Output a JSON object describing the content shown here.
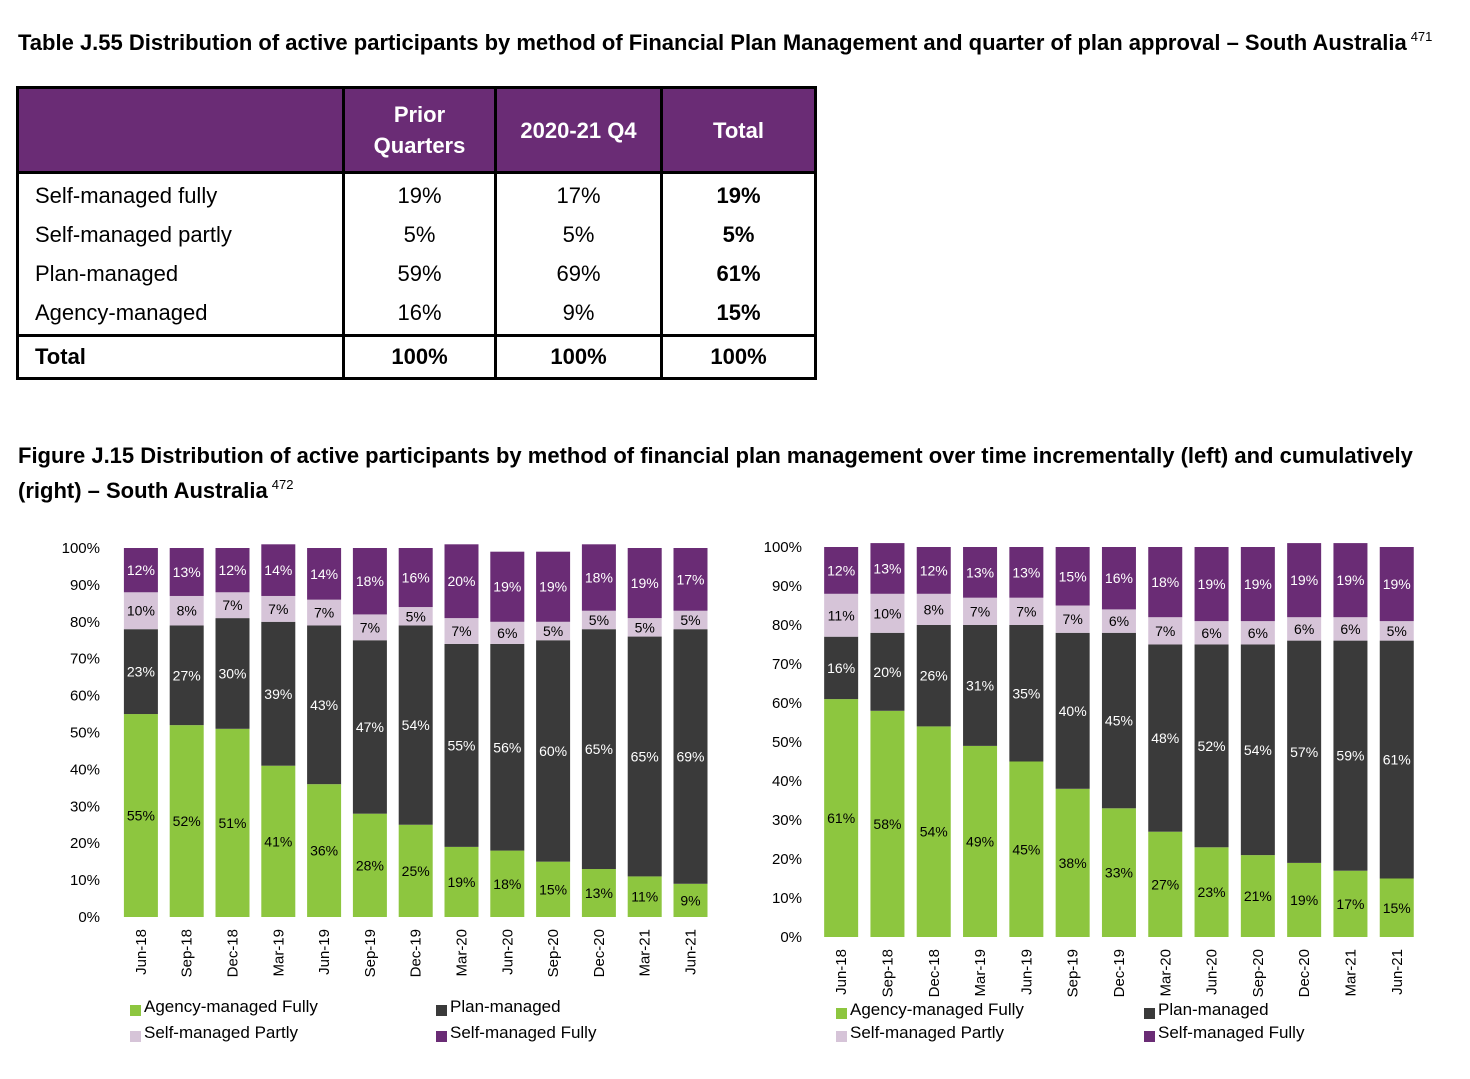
{
  "table": {
    "caption": "Table J.55 Distribution of active participants by method of Financial Plan Management and quarter of plan approval – South Australia",
    "footnote": "471",
    "headers": [
      "",
      "Prior Quarters",
      "2020-21 Q4",
      "Total"
    ],
    "rows": [
      {
        "label": "Self-managed fully",
        "prior": "19%",
        "q4": "17%",
        "total": "19%"
      },
      {
        "label": "Self-managed partly",
        "prior": "5%",
        "q4": "5%",
        "total": "5%"
      },
      {
        "label": "Plan-managed",
        "prior": "59%",
        "q4": "69%",
        "total": "61%"
      },
      {
        "label": "Agency-managed",
        "prior": "16%",
        "q4": "9%",
        "total": "15%"
      }
    ],
    "total_row": {
      "label": "Total",
      "prior": "100%",
      "q4": "100%",
      "total": "100%"
    }
  },
  "figure": {
    "caption": "Figure J.15 Distribution of active participants by method of financial plan management over time incrementally (left) and cumulatively (right) – South Australia",
    "footnote": "472"
  },
  "colors": {
    "header_purple": "#6a2c75",
    "agency": "#8dc63f",
    "plan": "#3a3a3a",
    "self_partly": "#d6c4d8",
    "self_fully": "#6a2c75"
  },
  "chart_data": [
    {
      "type": "bar",
      "stacked": true,
      "percent_axis": true,
      "categories": [
        "Jun-18",
        "Sep-18",
        "Dec-18",
        "Mar-19",
        "Jun-19",
        "Sep-19",
        "Dec-19",
        "Mar-20",
        "Jun-20",
        "Sep-20",
        "Dec-20",
        "Mar-21",
        "Jun-21"
      ],
      "ylim": [
        0,
        100
      ],
      "yticks": [
        "0%",
        "10%",
        "20%",
        "30%",
        "40%",
        "50%",
        "60%",
        "70%",
        "80%",
        "90%",
        "100%"
      ],
      "series": [
        {
          "name": "Agency-managed Fully",
          "values": [
            55,
            52,
            51,
            41,
            36,
            28,
            25,
            19,
            18,
            15,
            13,
            11,
            9
          ]
        },
        {
          "name": "Plan-managed",
          "values": [
            23,
            27,
            30,
            39,
            43,
            47,
            54,
            55,
            56,
            60,
            65,
            65,
            69
          ]
        },
        {
          "name": "Self-managed Partly",
          "values": [
            10,
            8,
            7,
            7,
            7,
            7,
            5,
            7,
            6,
            5,
            5,
            5,
            5
          ]
        },
        {
          "name": "Self-managed Fully",
          "values": [
            12,
            13,
            12,
            14,
            14,
            18,
            16,
            20,
            19,
            19,
            18,
            19,
            17
          ]
        }
      ],
      "legend_order": [
        "Agency-managed Fully",
        "Plan-managed",
        "Self-managed Partly",
        "Self-managed Fully"
      ],
      "legend": "bottom"
    },
    {
      "type": "bar",
      "stacked": true,
      "percent_axis": true,
      "categories": [
        "Jun-18",
        "Sep-18",
        "Dec-18",
        "Mar-19",
        "Jun-19",
        "Sep-19",
        "Dec-19",
        "Mar-20",
        "Jun-20",
        "Sep-20",
        "Dec-20",
        "Mar-21",
        "Jun-21"
      ],
      "ylim": [
        0,
        100
      ],
      "yticks": [
        "0%",
        "10%",
        "20%",
        "30%",
        "40%",
        "50%",
        "60%",
        "70%",
        "80%",
        "90%",
        "100%"
      ],
      "series": [
        {
          "name": "Agency-managed Fully",
          "values": [
            61,
            58,
            54,
            49,
            45,
            38,
            33,
            27,
            23,
            21,
            19,
            17,
            15
          ]
        },
        {
          "name": "Plan-managed",
          "values": [
            16,
            20,
            26,
            31,
            35,
            40,
            45,
            48,
            52,
            54,
            57,
            59,
            61
          ]
        },
        {
          "name": "Self-managed Partly",
          "values": [
            11,
            10,
            8,
            7,
            7,
            7,
            6,
            7,
            6,
            6,
            6,
            6,
            5
          ]
        },
        {
          "name": "Self-managed Fully",
          "values": [
            12,
            13,
            12,
            13,
            13,
            15,
            16,
            18,
            19,
            19,
            19,
            19,
            19
          ]
        }
      ],
      "legend_order": [
        "Agency-managed Fully",
        "Plan-managed",
        "Self-managed Partly",
        "Self-managed Fully"
      ],
      "legend": "bottom"
    }
  ]
}
